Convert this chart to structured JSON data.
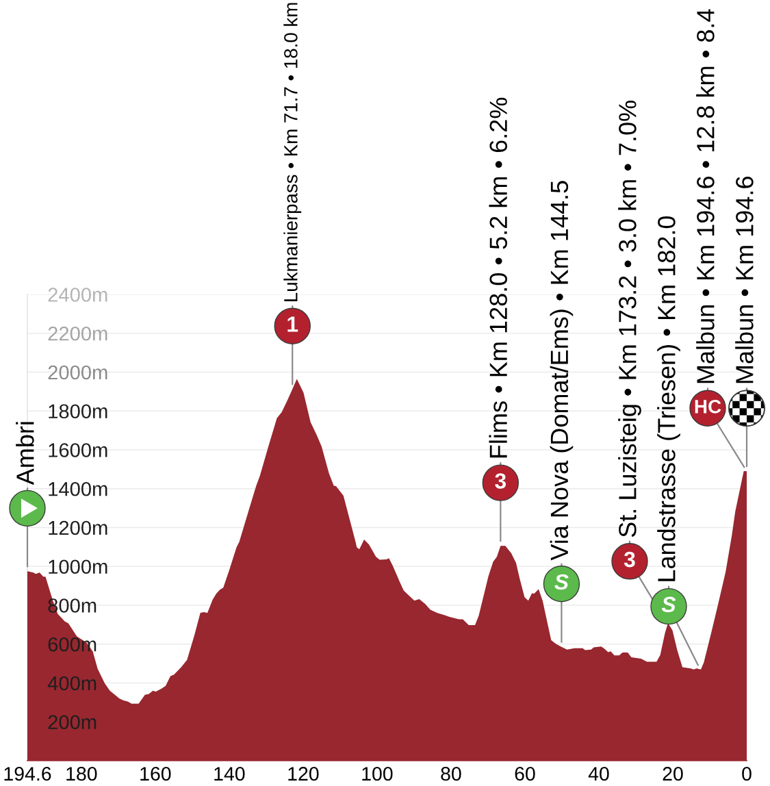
{
  "chart_data": {
    "type": "area",
    "color": "#98272f",
    "x": [
      194.6,
      193.0,
      192.3,
      191.3,
      190.3,
      189.7,
      187.7,
      186.4,
      184.5,
      183.5,
      181.2,
      178.6,
      176.9,
      175.6,
      173.7,
      172.3,
      169.7,
      168.7,
      167.4,
      166.4,
      164.5,
      162.8,
      161.8,
      160.6,
      159.9,
      158.3,
      157.2,
      155.9,
      155.0,
      153.0,
      151.4,
      149.4,
      147.8,
      146.8,
      145.9,
      144.5,
      143.5,
      142.5,
      141.6,
      139.9,
      138.0,
      137.3,
      134.7,
      132.7,
      131.7,
      129.4,
      127.1,
      125.8,
      124.2,
      122.9,
      121.7,
      119.9,
      118.0,
      116.3,
      115.0,
      113.0,
      111.7,
      111.1,
      109.1,
      107.2,
      105.8,
      105.5,
      104.8,
      103.5,
      102.2,
      100.3,
      99.3,
      97.4,
      96.8,
      95.8,
      94.8,
      93.8,
      92.8,
      90.9,
      89.9,
      88.6,
      87.0,
      85.6,
      83.7,
      81.7,
      80.4,
      77.8,
      76.8,
      75.2,
      73.5,
      72.5,
      71.2,
      69.9,
      68.6,
      67.6,
      66.6,
      65.3,
      63.7,
      62.4,
      61.4,
      60.1,
      59.1,
      58.1,
      57.5,
      56.3,
      55.2,
      54.2,
      52.9,
      51.6,
      50.3,
      48.6,
      46.6,
      44.4,
      43.7,
      42.1,
      41.4,
      39.4,
      38.5,
      37.5,
      36.8,
      35.8,
      34.5,
      33.6,
      32.2,
      31.2,
      28.6,
      27.0,
      24.4,
      23.4,
      22.1,
      21.3,
      20.1,
      18.8,
      17.4,
      15.2,
      14.3,
      13.6,
      12.4,
      11.6,
      9.6,
      7.7,
      5.7,
      4.0,
      3.1,
      0.8,
      0
    ],
    "values": [
      975,
      968,
      961,
      968,
      947,
      947,
      823,
      756,
      717,
      707,
      640,
      608,
      562,
      473,
      399,
      360,
      320,
      311,
      304,
      293,
      293,
      339,
      343,
      360,
      355,
      371,
      385,
      435,
      442,
      481,
      519,
      647,
      761,
      765,
      760,
      828,
      860,
      880,
      891,
      986,
      1100,
      1125,
      1290,
      1415,
      1466,
      1618,
      1763,
      1794,
      1857,
      1913,
      1965,
      1894,
      1743,
      1675,
      1617,
      1478,
      1415,
      1413,
      1364,
      1226,
      1125,
      1099,
      1088,
      1138,
      1113,
      1049,
      1034,
      1036,
      1042,
      1005,
      961,
      917,
      876,
      841,
      824,
      832,
      807,
      777,
      760,
      749,
      740,
      728,
      728,
      698,
      698,
      746,
      847,
      948,
      1024,
      1049,
      1106,
      1106,
      1068,
      1018,
      936,
      841,
      824,
      862,
      860,
      883,
      822,
      734,
      620,
      601,
      588,
      572,
      579,
      579,
      569,
      572,
      583,
      588,
      576,
      559,
      563,
      542,
      542,
      557,
      557,
      532,
      525,
      509,
      509,
      544,
      658,
      708,
      671,
      569,
      481,
      475,
      470,
      475,
      470,
      506,
      658,
      809,
      973,
      1163,
      1283,
      1491,
      1490
    ],
    "xlim": [
      194.6,
      0
    ],
    "xticks": [
      194.6,
      180,
      160,
      140,
      120,
      100,
      80,
      60,
      40,
      20,
      0
    ],
    "ylim": [
      0,
      2400
    ],
    "yticks": [
      {
        "value": 200,
        "label": "200m"
      },
      {
        "value": 400,
        "label": "400m"
      },
      {
        "value": 600,
        "label": "600m"
      },
      {
        "value": 800,
        "label": "800m"
      },
      {
        "value": 1000,
        "label": "1000m"
      },
      {
        "value": 1200,
        "label": "1200m"
      },
      {
        "value": 1400,
        "label": "1400m"
      },
      {
        "value": 1600,
        "label": "1600m"
      },
      {
        "value": 1800,
        "label": "1800m"
      },
      {
        "value": 2000,
        "label": "2000m"
      },
      {
        "value": 2200,
        "label": "2200m"
      },
      {
        "value": 2400,
        "label": "2400m"
      }
    ],
    "grid": "y",
    "annotations": [
      {
        "text": "Ambri",
        "x": 194.6,
        "y": 975
      },
      {
        "text": "Lukmanierpass • Km 71.7 • 18.0 km",
        "x": 122.9,
        "y": 1913
      },
      {
        "text": "1",
        "x": 122.9,
        "y": 1913
      },
      {
        "text": "Flims • Km 128.0 • 5.2 km • 6.2%",
        "x": 66.6,
        "y": 1106
      },
      {
        "text": "3",
        "x": 66.6,
        "y": 1106
      },
      {
        "text": "Via Nova (Domat/Ems) • Km 144.5",
        "x": 50.1,
        "y": 586
      },
      {
        "text": "S",
        "x": 50.1,
        "y": 586
      },
      {
        "text": "St. Luzisteig • Km 173.2 • 3.0 km • 7.0%",
        "x": 21.4,
        "y": 702
      },
      {
        "text": "3",
        "x": 21.4,
        "y": 702
      },
      {
        "text": "Landstrasse (Triesen) • Km 182.0",
        "x": 12.6,
        "y": 470
      },
      {
        "text": "S",
        "x": 12.6,
        "y": 470
      },
      {
        "text": "Malbun • Km 194.6 • 12.8 km • 8.4",
        "x": 0,
        "y": 1490
      },
      {
        "text": "HC",
        "x": 0,
        "y": 1490
      },
      {
        "text": "Malbun • Km 194.6",
        "x": 0,
        "y": 1490
      }
    ]
  }
}
